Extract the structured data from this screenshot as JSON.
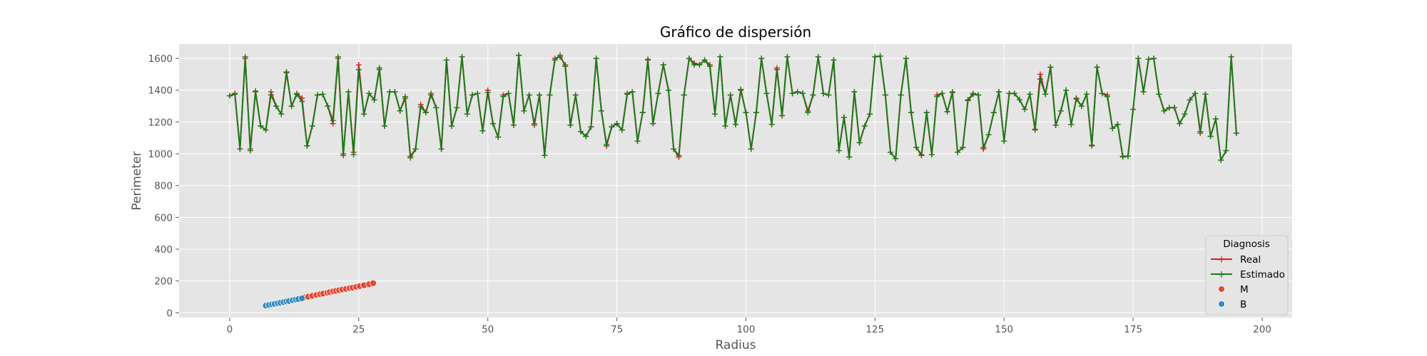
{
  "chart_data": {
    "type": "scatter",
    "title": "Gráfico de dispersión",
    "xlabel": "Radius",
    "ylabel": "Perimeter",
    "xlim": [
      -9.8,
      205.8
    ],
    "ylim": [
      -30,
      1690
    ],
    "xticks": [
      0,
      25,
      50,
      75,
      100,
      125,
      150,
      175,
      200
    ],
    "yticks": [
      0,
      200,
      400,
      600,
      800,
      1000,
      1200,
      1400,
      1600
    ],
    "grid": true,
    "legend": {
      "title": "Diagnosis",
      "position": "lower-right"
    },
    "colors": {
      "real": "#e41a1c",
      "estimado": "#1b7a1b",
      "M": "#e24a33",
      "B": "#348abd",
      "background": "#e5e5e5"
    },
    "series": [
      {
        "name": "Real",
        "kind": "line",
        "x_start": 0,
        "values": [
          1365,
          1380,
          1030,
          1600,
          1030,
          1390,
          1175,
          1150,
          1390,
          1300,
          1250,
          1510,
          1300,
          1380,
          1350,
          1050,
          1175,
          1370,
          1375,
          1300,
          1190,
          1600,
          1000,
          1390,
          1010,
          1560,
          1250,
          1380,
          1340,
          1530,
          1175,
          1390,
          1390,
          1270,
          1350,
          985,
          1030,
          1310,
          1260,
          1380,
          1290,
          1030,
          1590,
          1175,
          1290,
          1610,
          1250,
          1370,
          1380,
          1145,
          1400,
          1190,
          1105,
          1370,
          1380,
          1180,
          1620,
          1270,
          1370,
          1180,
          1370,
          990,
          1370,
          1600,
          1610,
          1560,
          1180,
          1370,
          1140,
          1110,
          1170,
          1600,
          1270,
          1050,
          1170,
          1190,
          1150,
          1380,
          1390,
          1080,
          1260,
          1590,
          1190,
          1380,
          1560,
          1400,
          1030,
          980,
          1370,
          1600,
          1570,
          1560,
          1590,
          1560,
          1250,
          1610,
          1175,
          1370,
          1185,
          1400,
          1260,
          1030,
          1260,
          1600,
          1380,
          1185,
          1540,
          1240,
          1610,
          1380,
          1390,
          1380,
          1270,
          1370,
          1610,
          1380,
          1370,
          1590,
          1020,
          1230,
          980,
          1390,
          1070,
          1175,
          1250,
          1610,
          1615,
          1370,
          1010,
          970,
          1370,
          1600,
          1260,
          1040,
          995,
          1260,
          995,
          1370,
          1380,
          1265,
          1390,
          1010,
          1040,
          1340,
          1380,
          1370,
          1030,
          1120,
          1260,
          1390,
          1080,
          1380,
          1380,
          1340,
          1280,
          1375,
          1155,
          1500,
          1375,
          1545,
          1180,
          1270,
          1400,
          1185,
          1350,
          1300,
          1375,
          1055,
          1545,
          1380,
          1370,
          1160,
          1185,
          985,
          985,
          1280,
          1600,
          1390,
          1595,
          1600,
          1375,
          1270,
          1290,
          1290,
          1190,
          1250,
          1340,
          1380,
          1130,
          1375,
          1110,
          1220,
          960,
          1020,
          1610,
          1130
        ],
        "color": "#e41a1c"
      },
      {
        "name": "Estimado",
        "kind": "line",
        "x_start": 0,
        "values": [
          1365,
          1375,
          1030,
          1610,
          1020,
          1395,
          1175,
          1150,
          1370,
          1300,
          1250,
          1515,
          1300,
          1375,
          1330,
          1050,
          1175,
          1370,
          1375,
          1300,
          1210,
          1610,
          990,
          1390,
          995,
          1530,
          1250,
          1380,
          1340,
          1540,
          1175,
          1390,
          1390,
          1270,
          1360,
          975,
          1030,
          1295,
          1260,
          1370,
          1290,
          1030,
          1590,
          1175,
          1290,
          1610,
          1250,
          1370,
          1380,
          1145,
          1385,
          1190,
          1105,
          1360,
          1380,
          1180,
          1620,
          1270,
          1370,
          1190,
          1370,
          990,
          1370,
          1590,
          1620,
          1550,
          1180,
          1370,
          1140,
          1110,
          1170,
          1600,
          1270,
          1060,
          1170,
          1190,
          1150,
          1375,
          1390,
          1080,
          1260,
          1595,
          1190,
          1380,
          1560,
          1400,
          1030,
          990,
          1370,
          1600,
          1560,
          1560,
          1590,
          1550,
          1250,
          1610,
          1175,
          1370,
          1185,
          1405,
          1260,
          1030,
          1260,
          1600,
          1380,
          1185,
          1530,
          1240,
          1610,
          1380,
          1390,
          1380,
          1260,
          1370,
          1610,
          1380,
          1370,
          1590,
          1020,
          1230,
          980,
          1390,
          1070,
          1175,
          1250,
          1610,
          1615,
          1370,
          1010,
          970,
          1370,
          1600,
          1260,
          1040,
          990,
          1260,
          995,
          1360,
          1380,
          1265,
          1385,
          1010,
          1040,
          1335,
          1375,
          1370,
          1040,
          1120,
          1260,
          1390,
          1080,
          1380,
          1380,
          1340,
          1280,
          1375,
          1150,
          1470,
          1375,
          1545,
          1180,
          1270,
          1400,
          1185,
          1345,
          1300,
          1375,
          1050,
          1545,
          1380,
          1360,
          1160,
          1185,
          980,
          985,
          1280,
          1600,
          1390,
          1595,
          1600,
          1375,
          1270,
          1290,
          1290,
          1190,
          1250,
          1340,
          1380,
          1140,
          1375,
          1110,
          1220,
          960,
          1020,
          1610,
          1130
        ],
        "color": "#1b7a1b"
      },
      {
        "name": "M",
        "kind": "scatter",
        "x": [
          14.5,
          15.2,
          16.0,
          16.8,
          17.5,
          18.1,
          18.9,
          19.4,
          20.0,
          20.6,
          21.2,
          21.8,
          22.5,
          23.2,
          23.8,
          24.5,
          25.2,
          26.0,
          27.0,
          27.8
        ],
        "y": [
          97,
          101,
          107,
          112,
          117,
          121,
          126,
          130,
          135,
          138,
          142,
          146,
          150,
          155,
          158,
          163,
          168,
          173,
          180,
          186
        ],
        "color": "#e24a33"
      },
      {
        "name": "B",
        "kind": "scatter",
        "x": [
          7.0,
          7.6,
          8.2,
          8.7,
          9.3,
          9.8,
          10.4,
          11.0,
          11.5,
          12.2,
          12.8,
          13.3,
          14.0
        ],
        "y": [
          45,
          49,
          53,
          56,
          60,
          63,
          67,
          71,
          74,
          79,
          83,
          86,
          91
        ],
        "color": "#348abd"
      }
    ]
  }
}
